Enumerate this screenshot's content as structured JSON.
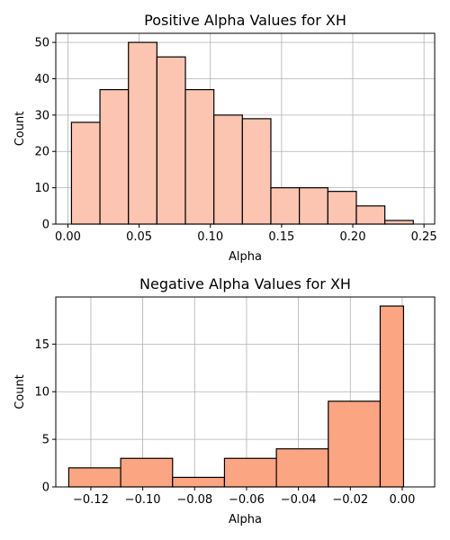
{
  "chart_data": [
    {
      "type": "bar",
      "title": "Positive Alpha Values for XH",
      "xlabel": "Alpha",
      "ylabel": "Count",
      "xlim": [
        -0.0085,
        0.2575
      ],
      "ylim": [
        0,
        52.5
      ],
      "xticks": [
        0.0,
        0.05,
        0.1,
        0.15,
        0.2,
        0.25
      ],
      "xtick_labels": [
        "0.00",
        "0.05",
        "0.10",
        "0.15",
        "0.20",
        "0.25"
      ],
      "yticks": [
        0,
        10,
        20,
        30,
        40,
        50
      ],
      "ytick_labels": [
        "0",
        "10",
        "20",
        "30",
        "40",
        "50"
      ],
      "bin_edges": [
        0.0025,
        0.0225,
        0.0425,
        0.0625,
        0.0825,
        0.1025,
        0.1225,
        0.1425,
        0.1625,
        0.1825,
        0.2025,
        0.2225,
        0.2425
      ],
      "values": [
        28,
        37,
        50,
        46,
        37,
        30,
        29,
        10,
        10,
        9,
        5,
        1
      ],
      "grid": true,
      "color": "#fcc5b1"
    },
    {
      "type": "bar",
      "title": "Negative Alpha Values for XH",
      "xlabel": "Alpha",
      "ylabel": "Count",
      "xlim": [
        -0.1335,
        0.0125
      ],
      "ylim": [
        0,
        19.95
      ],
      "xticks": [
        -0.12,
        -0.1,
        -0.08,
        -0.06,
        -0.04,
        -0.02,
        0.0
      ],
      "xtick_labels": [
        "−0.12",
        "−0.10",
        "−0.08",
        "−0.06",
        "−0.04",
        "−0.02",
        "0.00"
      ],
      "yticks": [
        0,
        5,
        10,
        15
      ],
      "ytick_labels": [
        "0",
        "5",
        "10",
        "15"
      ],
      "bin_edges": [
        -0.1285,
        -0.1085,
        -0.0885,
        -0.0685,
        -0.0485,
        -0.0285,
        -0.0085,
        0.0005
      ],
      "bin_edges_note_free": true,
      "values": [
        2,
        3,
        1,
        3,
        4,
        9,
        19
      ],
      "grid": true,
      "color": "#fca582"
    }
  ]
}
